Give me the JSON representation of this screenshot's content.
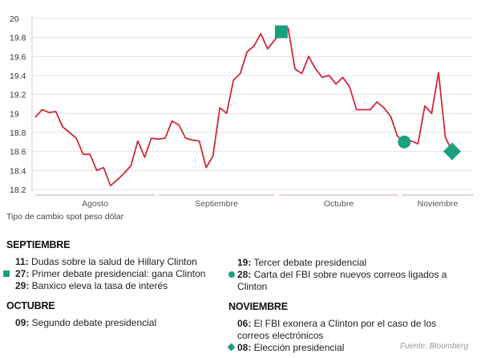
{
  "chart_data": {
    "type": "line",
    "ylim": [
      18.2,
      20.0
    ],
    "yticks": [
      "20",
      "19.8",
      "19.6",
      "19.4",
      "19.2",
      "19",
      "18.8",
      "18.6",
      "18.4",
      "18.2"
    ],
    "months": [
      "Agosto",
      "Septiembre",
      "Octubre",
      "Noviembre"
    ],
    "caption": "Tipo de cambio spot peso dólar",
    "series": [
      {
        "color": "#d0283a",
        "values": [
          18.96,
          19.04,
          19.01,
          19.02,
          18.86,
          18.8,
          18.74,
          18.57,
          18.57,
          18.4,
          18.43,
          18.24,
          18.3,
          18.37,
          18.45,
          18.71,
          18.54,
          18.74,
          18.73,
          18.74,
          18.92,
          18.88,
          18.74,
          18.72,
          18.71,
          18.43,
          18.55,
          19.06,
          19.0,
          19.35,
          19.42,
          19.65,
          19.71,
          19.84,
          19.68,
          19.77,
          19.86,
          19.9,
          19.47,
          19.42,
          19.6,
          19.47,
          19.38,
          19.4,
          19.31,
          19.38,
          19.28,
          19.04,
          19.04,
          19.04,
          19.12,
          19.06,
          18.97,
          18.76,
          18.7,
          18.71,
          18.68,
          19.08,
          19.0,
          19.43,
          18.75,
          18.6
        ]
      }
    ],
    "markers": [
      {
        "shape": "square",
        "index": 36
      },
      {
        "shape": "circle",
        "index": 54
      },
      {
        "shape": "diamond",
        "index": 61
      }
    ],
    "marker_color": "#1aa17f"
  },
  "events": {
    "septiembre_title": "SEPTIEMBRE",
    "e11_day": "11:",
    "e11_text": " Dudas sobre la salud de Hillary Clinton",
    "e27_day": "27:",
    "e27_text": " Primer debate presidencial: gana Clinton",
    "e29_day": "29:",
    "e29_text": " Banxico eleva la tasa de interés",
    "octubre_title": "OCTUBRE",
    "e09_day": "09:",
    "e09_text": " Segundo debate presidencial",
    "e19_day": "19:",
    "e19_text": " Tercer debate presidencial",
    "e28_day": "28:",
    "e28_text": " Carta del FBI sobre nuevos correos ligados a Clinton",
    "noviembre_title": "NOVIEMBRE",
    "e06_day": "06:",
    "e06_text": " El FBI exonera a Clinton por el caso de los correos electrónicos",
    "e08_day": "08:",
    "e08_text": " Elección presidencial"
  },
  "source": "Fuente: Bloomberg"
}
